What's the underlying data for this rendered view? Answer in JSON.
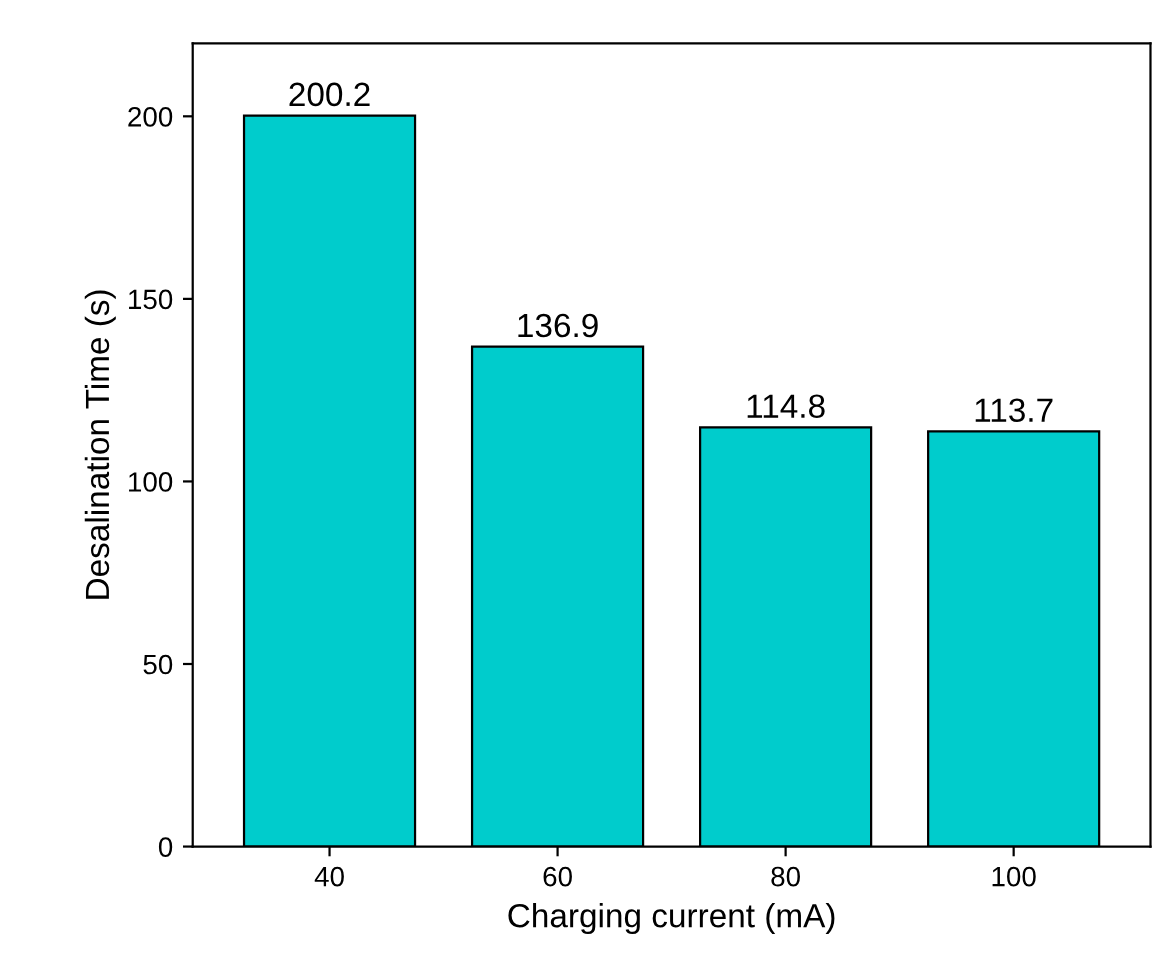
{
  "chart_data": {
    "type": "bar",
    "xlabel": "Charging current (mA)",
    "ylabel": "Desalination Time (s)",
    "categories": [
      "40",
      "60",
      "80",
      "100"
    ],
    "series": [
      {
        "color": "#00cccc",
        "values": [
          200.2,
          136.9,
          114.8,
          113.7
        ]
      }
    ],
    "data_labels": true,
    "ylim": [
      0,
      220
    ],
    "yticks": [
      0,
      50,
      100,
      150,
      200
    ],
    "grid": false,
    "legend": false
  }
}
